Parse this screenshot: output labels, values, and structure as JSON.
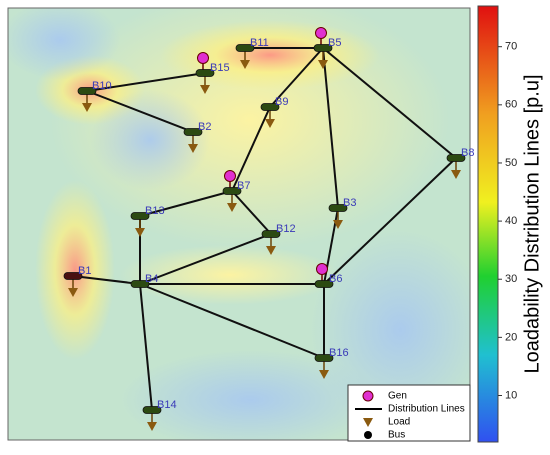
{
  "chart_data": {
    "type": "contour-network",
    "colorbar_label": "Loadability Distribution Lines [p.u]",
    "zlim": [
      2,
      77
    ],
    "zticks": [
      10,
      20,
      30,
      40,
      50,
      60,
      70
    ],
    "legend": [
      "Gen",
      "Distribution Lines",
      "Load",
      "Bus"
    ],
    "nodes": [
      {
        "label": "B1"
      },
      {
        "label": "B2"
      },
      {
        "label": "B3"
      },
      {
        "label": "B4"
      },
      {
        "label": "B5"
      },
      {
        "label": "B6"
      },
      {
        "label": "B7"
      },
      {
        "label": "B8"
      },
      {
        "label": "B9"
      },
      {
        "label": "B10"
      },
      {
        "label": "B11"
      },
      {
        "label": "B12"
      },
      {
        "label": "B13"
      },
      {
        "label": "B14"
      },
      {
        "label": "B15"
      },
      {
        "label": "B16"
      }
    ]
  }
}
